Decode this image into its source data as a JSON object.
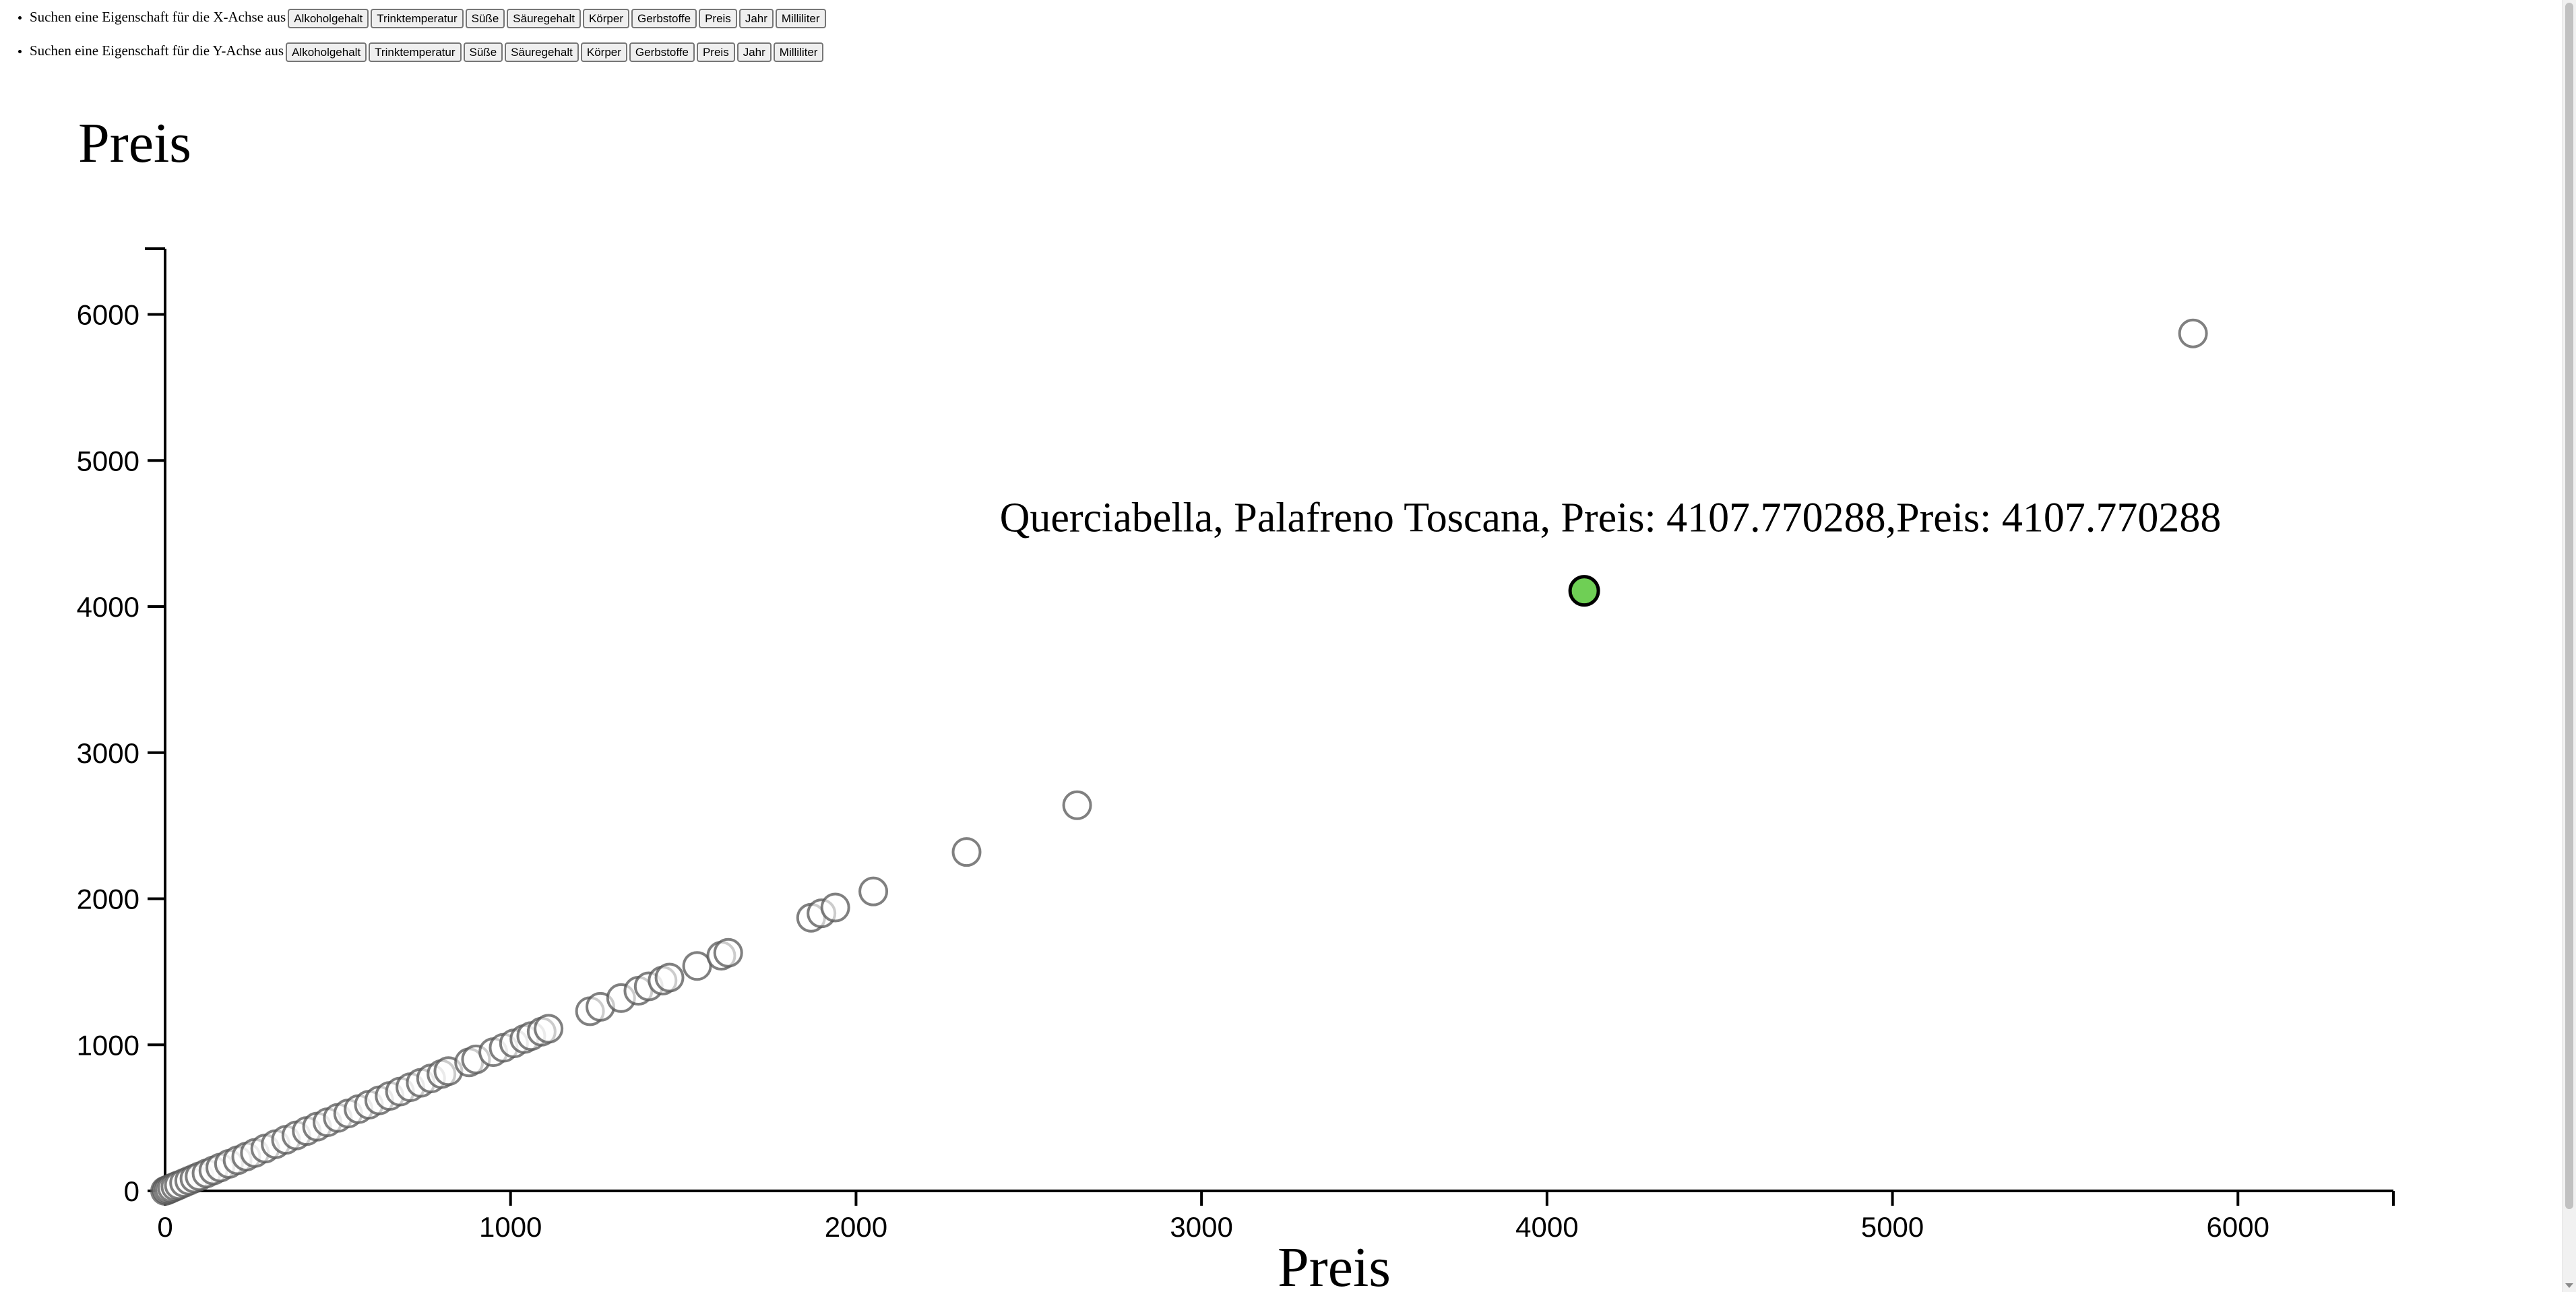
{
  "controls": {
    "x_prompt": "Suchen eine Eigenschaft für die X-Achse aus",
    "y_prompt": "Suchen eine Eigenschaft für die Y-Achse aus",
    "x_buttons": [
      "Alkoholgehalt",
      "Trinktemperatur",
      "Süße",
      "Säuregehalt",
      "Körper",
      "Gerbstoffe",
      "Preis",
      "Jahr",
      "Milliliter"
    ],
    "y_buttons": [
      "Alkoholgehalt",
      "Trinktemperatur",
      "Süße",
      "Säuregehalt",
      "Körper",
      "Gerbstoffe",
      "Preis",
      "Jahr",
      "Milliliter"
    ]
  },
  "chart_data": {
    "type": "scatter",
    "title": "Preis",
    "xlabel": "Preis",
    "ylabel": "",
    "xlim": [
      0,
      6450
    ],
    "ylim": [
      0,
      6450
    ],
    "x_ticks": [
      "0",
      "1000",
      "2000",
      "3000",
      "4000",
      "5000",
      "6000"
    ],
    "y_ticks": [
      "0",
      "1000",
      "2000",
      "3000",
      "4000",
      "5000",
      "6000"
    ],
    "grid": false,
    "colors": {
      "point_stroke": "#555555",
      "point_fill": "#ffffff",
      "highlight_fill": "#6fcf55",
      "highlight_stroke": "#000000"
    },
    "highlight": {
      "label": "Querciabella, Palafreno Toscana, Preis: 4107.770288,Preis: 4107.770288",
      "x": 4107.770288,
      "y": 4107.770288
    },
    "points": [
      [
        0,
        0
      ],
      [
        5,
        5
      ],
      [
        12,
        12
      ],
      [
        20,
        20
      ],
      [
        30,
        30
      ],
      [
        40,
        40
      ],
      [
        55,
        55
      ],
      [
        70,
        70
      ],
      [
        85,
        85
      ],
      [
        100,
        100
      ],
      [
        120,
        120
      ],
      [
        140,
        140
      ],
      [
        160,
        160
      ],
      [
        185,
        185
      ],
      [
        210,
        210
      ],
      [
        235,
        235
      ],
      [
        260,
        260
      ],
      [
        290,
        290
      ],
      [
        320,
        320
      ],
      [
        350,
        350
      ],
      [
        380,
        380
      ],
      [
        410,
        410
      ],
      [
        440,
        440
      ],
      [
        470,
        470
      ],
      [
        500,
        500
      ],
      [
        530,
        530
      ],
      [
        560,
        560
      ],
      [
        590,
        590
      ],
      [
        620,
        620
      ],
      [
        650,
        650
      ],
      [
        680,
        680
      ],
      [
        710,
        710
      ],
      [
        740,
        740
      ],
      [
        770,
        770
      ],
      [
        800,
        800
      ],
      [
        820,
        820
      ],
      [
        880,
        880
      ],
      [
        900,
        900
      ],
      [
        950,
        950
      ],
      [
        980,
        980
      ],
      [
        1010,
        1010
      ],
      [
        1040,
        1040
      ],
      [
        1060,
        1060
      ],
      [
        1090,
        1090
      ],
      [
        1110,
        1110
      ],
      [
        1230,
        1230
      ],
      [
        1260,
        1260
      ],
      [
        1320,
        1320
      ],
      [
        1370,
        1370
      ],
      [
        1400,
        1400
      ],
      [
        1440,
        1440
      ],
      [
        1460,
        1460
      ],
      [
        1540,
        1540
      ],
      [
        1610,
        1610
      ],
      [
        1630,
        1630
      ],
      [
        1870,
        1870
      ],
      [
        1900,
        1900
      ],
      [
        1940,
        1940
      ],
      [
        2050,
        2050
      ],
      [
        2320,
        2320
      ],
      [
        2640,
        2640
      ],
      [
        5870,
        5870
      ]
    ]
  }
}
